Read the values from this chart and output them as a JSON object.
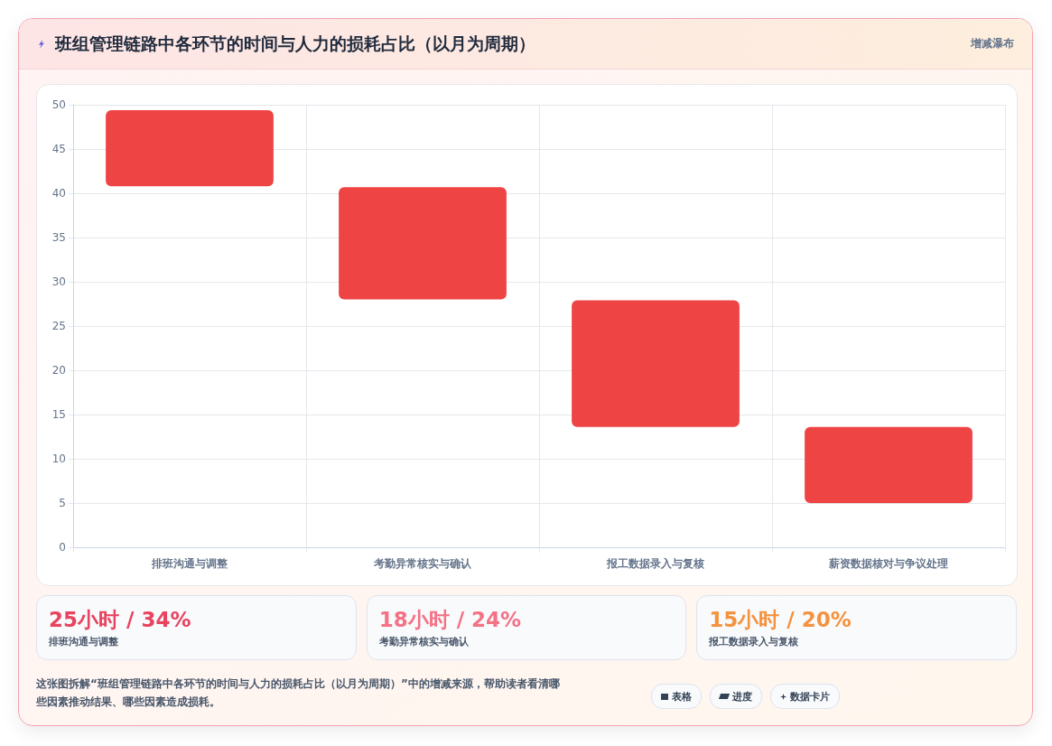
{
  "chart_data": {
    "type": "bar",
    "title": "班组管理链路中各环节的时间与人力的损耗占比（以月为周期）",
    "categories": [
      "排班沟通与调整",
      "考勤异常核实与确认",
      "报工数据录入与复核",
      "薪资数据核对与争议处理"
    ],
    "base": [
      40.8,
      28.0,
      13.6,
      5.0
    ],
    "values": [
      8.6,
      12.7,
      14.3,
      8.6
    ],
    "color": "#ef4444",
    "ylim": [
      0,
      50
    ],
    "yticks": [
      0,
      5,
      10,
      15,
      20,
      25,
      30,
      35,
      40,
      45,
      50
    ],
    "grid": true,
    "annotations": [
      "增减瀑布",
      "25小时 / 34%",
      "排班沟通与调整",
      "18小时 / 24%",
      "考勤异常核实与确认",
      "15小时 / 20%",
      "报工数据录入与复核",
      "这张图拆解“班组管理链路中各环节的时间与人力的损耗占比（以月为周期）”中的增减来源，帮助读者看清哪些因素推动结果、哪些因素造成损耗。",
      "表格",
      "进度",
      "数据卡片"
    ]
  }
}
